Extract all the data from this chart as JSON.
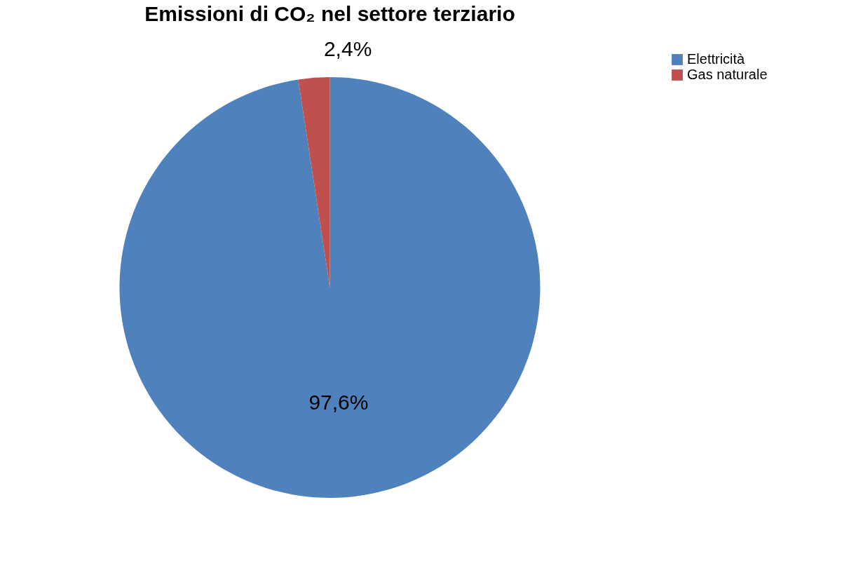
{
  "chart_data": {
    "type": "pie",
    "title": "Emissioni di CO₂ nel settore terziario",
    "categories": [
      "Elettricità",
      "Gas naturale"
    ],
    "values": [
      97.6,
      2.4
    ],
    "colors": [
      "#4f81bd",
      "#c0504d"
    ],
    "value_labels": [
      "97,6%",
      "2,4%"
    ],
    "legend": "right"
  }
}
